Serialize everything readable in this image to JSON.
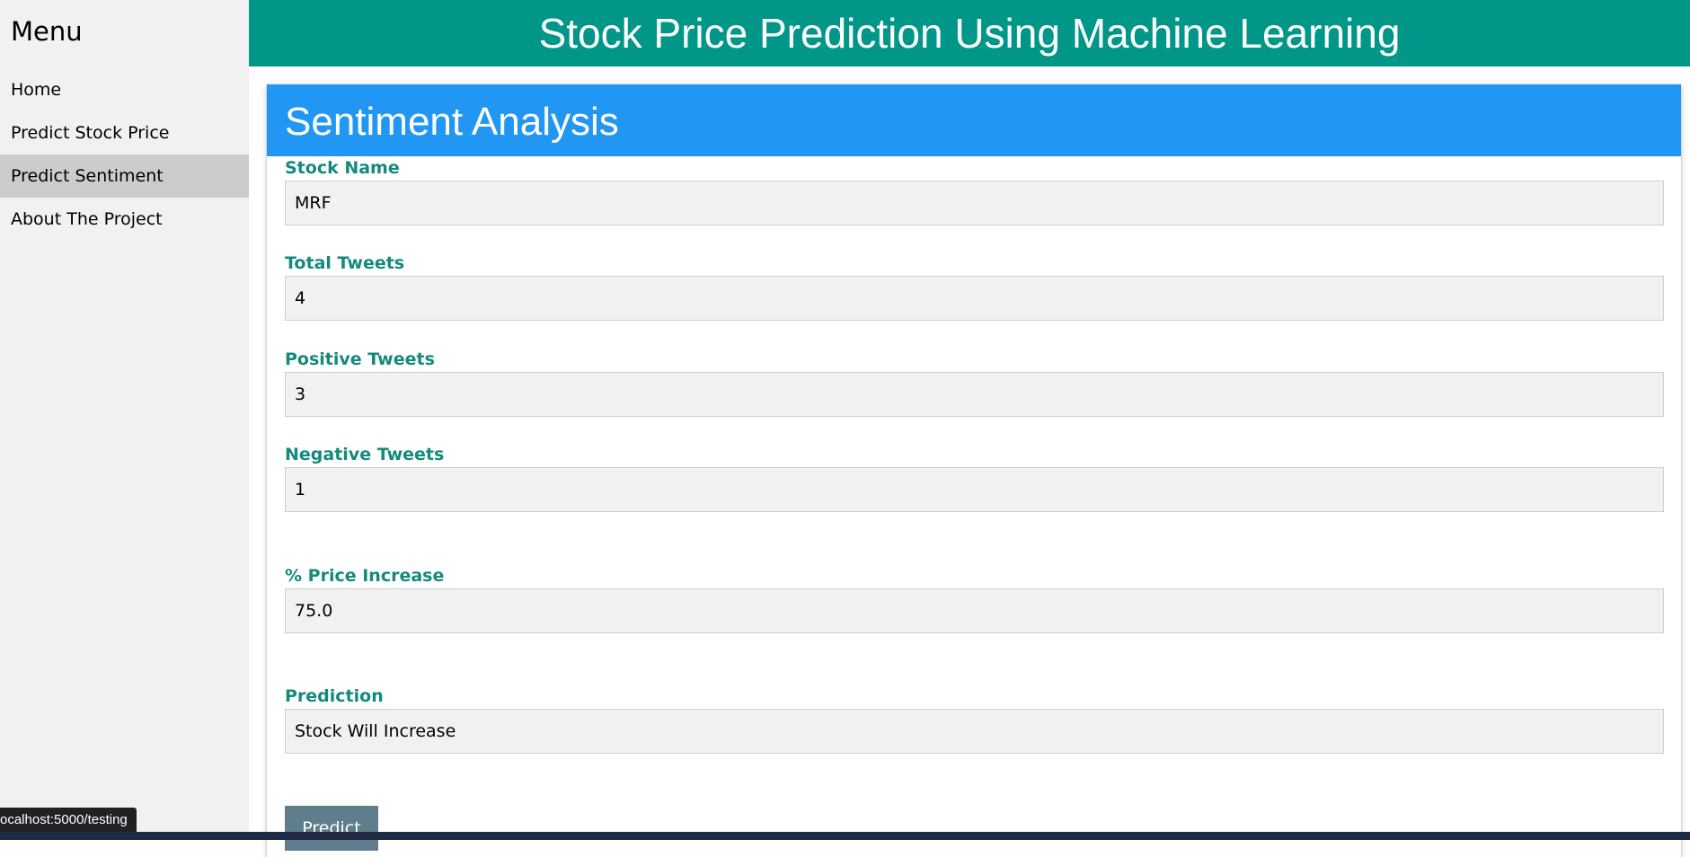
{
  "app": {
    "header_title": "Stock Price Prediction Using Machine Learning"
  },
  "sidebar": {
    "title": "Menu",
    "items": [
      {
        "label": "Home"
      },
      {
        "label": "Predict Stock Price"
      },
      {
        "label": "Predict Sentiment"
      },
      {
        "label": "About The Project"
      }
    ]
  },
  "card": {
    "title": "Sentiment Analysis"
  },
  "form": {
    "stock_name": {
      "label": "Stock Name",
      "value": "MRF"
    },
    "total_tweets": {
      "label": "Total Tweets",
      "value": "4"
    },
    "positive_tweets": {
      "label": "Positive Tweets",
      "value": "3"
    },
    "negative_tweets": {
      "label": "Negative Tweets",
      "value": "1"
    },
    "price_increase": {
      "label": "% Price Increase",
      "value": "75.0"
    },
    "prediction": {
      "label": "Prediction",
      "value": "Stock Will Increase"
    },
    "predict_button": "Predict"
  },
  "status_bar": {
    "url": "ocalhost:5000/testing"
  },
  "colors": {
    "header_teal": "#009688",
    "card_header_blue": "#2196f3",
    "label_teal": "#148a7d",
    "button_grey_blue": "#607d8b",
    "active_menu": "#cccccc"
  }
}
